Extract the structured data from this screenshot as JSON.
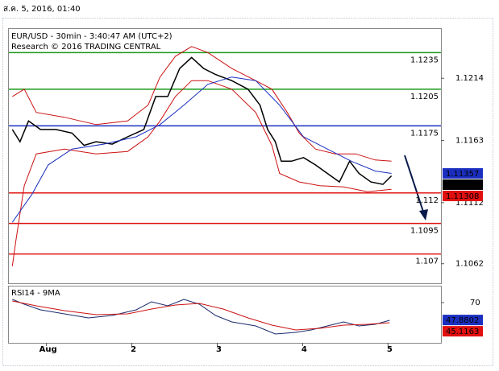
{
  "header": {
    "date": "ส.ค. 5, 2016, 01:40"
  },
  "chart_data": {
    "type": "line",
    "title": "EUR/USD - 30min - 3:40:47 AM (UTC+2)",
    "subtitle": "Research © 2016 TRADING CENTRAL",
    "xlim": [
      0.55,
      5.62
    ],
    "xticks": [
      {
        "value": 1,
        "label": "Aug"
      },
      2,
      3,
      4,
      5
    ],
    "ylim": [
      1.1046,
      1.1255
    ],
    "yticks": [
      1.1062,
      1.1112,
      1.1163,
      1.1214
    ],
    "levels": [
      {
        "value": 1.1235,
        "color": "#1a9a1a"
      },
      {
        "value": 1.1205,
        "color": "#1a9a1a"
      },
      {
        "value": 1.1175,
        "color": "#1a2fc0"
      },
      {
        "value": 1.112,
        "color": "#e01010"
      },
      {
        "value": 1.1095,
        "color": "#e01010"
      },
      {
        "value": 1.107,
        "color": "#e01010"
      }
    ],
    "series": [
      {
        "color": "#000000",
        "x": [
          0.6,
          0.69,
          0.79,
          0.93,
          1.11,
          1.3,
          1.44,
          1.58,
          1.77,
          1.95,
          2.14,
          2.28,
          2.42,
          2.56,
          2.7,
          2.84,
          2.98,
          3.17,
          3.36,
          3.5,
          3.59,
          3.68,
          3.75,
          3.87,
          4.01,
          4.15,
          4.29,
          4.43,
          4.55,
          4.66,
          4.8,
          4.94,
          5.04
        ],
        "values": [
          1.1172,
          1.1162,
          1.1179,
          1.1172,
          1.1172,
          1.1169,
          1.1159,
          1.1162,
          1.116,
          1.1166,
          1.1172,
          1.1199,
          1.1199,
          1.1222,
          1.1231,
          1.1222,
          1.1217,
          1.1212,
          1.1205,
          1.1192,
          1.1172,
          1.1162,
          1.1146,
          1.1146,
          1.1149,
          1.1143,
          1.1136,
          1.1129,
          1.1146,
          1.1136,
          1.1129,
          1.1127,
          1.1134
        ]
      },
      {
        "color": "#cc1111",
        "x": [
          0.6,
          0.74,
          0.88,
          1.21,
          1.58,
          1.95,
          2.19,
          2.33,
          2.51,
          2.7,
          2.89,
          3.17,
          3.45,
          3.64,
          3.82,
          3.96,
          4.15,
          4.38,
          4.62,
          4.85,
          5.04
        ],
        "values": [
          1.1199,
          1.1205,
          1.1186,
          1.1182,
          1.1176,
          1.1179,
          1.1192,
          1.1215,
          1.1232,
          1.124,
          1.1235,
          1.1222,
          1.1212,
          1.1205,
          1.1186,
          1.1169,
          1.1156,
          1.1152,
          1.1152,
          1.1147,
          1.1146
        ]
      },
      {
        "color": "#cc1111",
        "x": [
          0.6,
          0.64,
          0.74,
          0.88,
          1.21,
          1.58,
          1.95,
          2.19,
          2.33,
          2.51,
          2.7,
          2.89,
          3.17,
          3.45,
          3.64,
          3.73,
          3.96,
          4.2,
          4.48,
          4.76,
          5.04
        ],
        "values": [
          1.106,
          1.108,
          1.1126,
          1.1152,
          1.1156,
          1.1152,
          1.1154,
          1.1166,
          1.1179,
          1.1199,
          1.1212,
          1.1212,
          1.1205,
          1.1186,
          1.1159,
          1.1136,
          1.1129,
          1.1126,
          1.1125,
          1.1121,
          1.1123
        ]
      },
      {
        "color": "#1a2fc0",
        "x": [
          0.6,
          0.83,
          1.02,
          1.3,
          1.67,
          2.05,
          2.33,
          2.61,
          2.89,
          3.17,
          3.45,
          3.73,
          4.01,
          4.29,
          4.57,
          4.85,
          5.04
        ],
        "values": [
          1.1096,
          1.1119,
          1.1143,
          1.1156,
          1.116,
          1.1166,
          1.1176,
          1.1192,
          1.1209,
          1.1215,
          1.1212,
          1.1192,
          1.1166,
          1.1156,
          1.1146,
          1.1138,
          1.1136
        ]
      }
    ],
    "price_labels": [
      {
        "value": 1.11357,
        "color": "#1a2fc0"
      },
      {
        "value": 1.11314,
        "color": "#000000"
      },
      {
        "value": 1.11308,
        "color": "#e01010"
      }
    ],
    "rsi": {
      "title": "RSI14 - 9MA",
      "ylim": [
        20,
        90
      ],
      "yticks": [
        70
      ],
      "series": [
        {
          "color": "#1a2a6a",
          "x": [
            0.6,
            0.74,
            0.93,
            1.21,
            1.49,
            1.77,
            2.05,
            2.23,
            2.42,
            2.61,
            2.79,
            2.98,
            3.17,
            3.45,
            3.68,
            3.92,
            4.1,
            4.29,
            4.48,
            4.66,
            4.85,
            5.02
          ],
          "values": [
            74,
            68,
            61,
            56,
            51,
            54,
            61,
            71,
            66,
            74,
            68,
            54,
            46,
            41,
            31,
            33,
            36,
            41,
            46,
            41,
            43,
            48
          ]
        },
        {
          "color": "#cc1111",
          "x": [
            0.6,
            0.88,
            1.21,
            1.58,
            1.95,
            2.23,
            2.51,
            2.79,
            3.07,
            3.36,
            3.64,
            3.92,
            4.2,
            4.48,
            4.76,
            5.02
          ],
          "values": [
            72,
            66,
            60,
            55,
            56,
            62,
            67,
            69,
            62,
            51,
            42,
            36,
            38,
            42,
            43,
            45
          ]
        }
      ],
      "price_labels": [
        {
          "value": 47.8802,
          "color": "#1a2fc0"
        },
        {
          "value": 45.1163,
          "color": "#e01010"
        }
      ]
    }
  }
}
